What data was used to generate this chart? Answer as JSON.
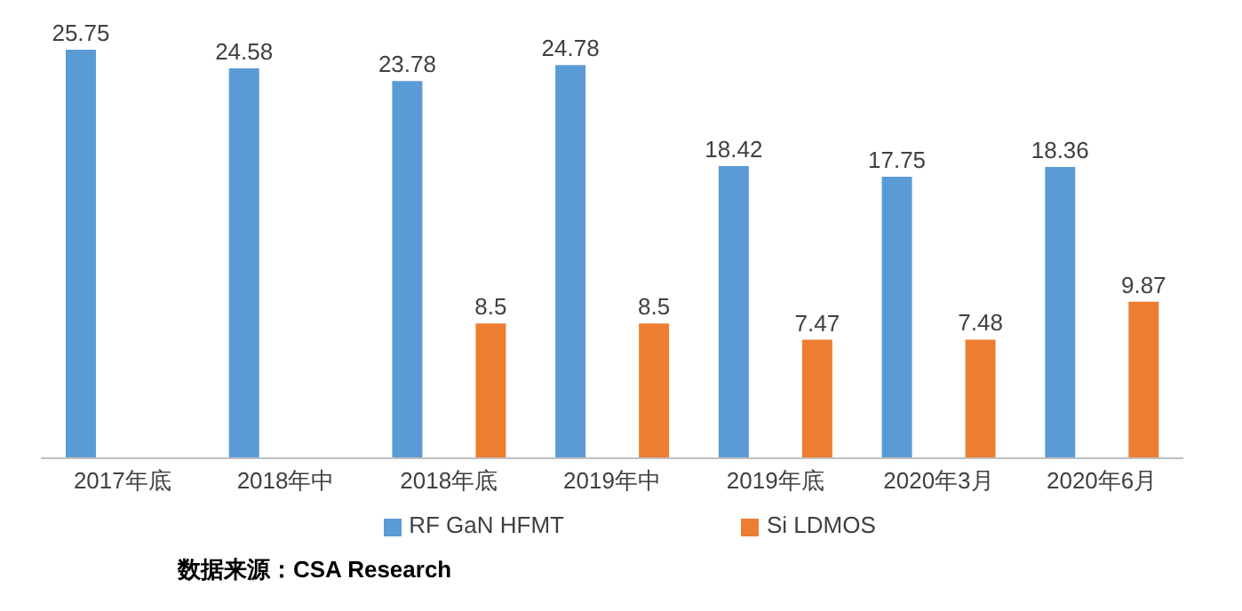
{
  "chart_data": {
    "type": "bar",
    "categories": [
      "2017年底",
      "2018年中",
      "2018年底",
      "2019年中",
      "2019年底",
      "2020年3月",
      "2020年6月"
    ],
    "series": [
      {
        "name": "RF GaN HFMT",
        "color": "#5b9bd5",
        "values": [
          25.75,
          24.58,
          23.78,
          24.78,
          18.42,
          17.75,
          18.36
        ]
      },
      {
        "name": "Si LDMOS",
        "color": "#ed7d31",
        "values": [
          null,
          null,
          8.5,
          8.5,
          7.47,
          7.48,
          9.87
        ]
      }
    ],
    "data_labels": true,
    "legend": "bottom",
    "grid": false,
    "annotations": [
      "数据来源：CSA Research"
    ]
  }
}
